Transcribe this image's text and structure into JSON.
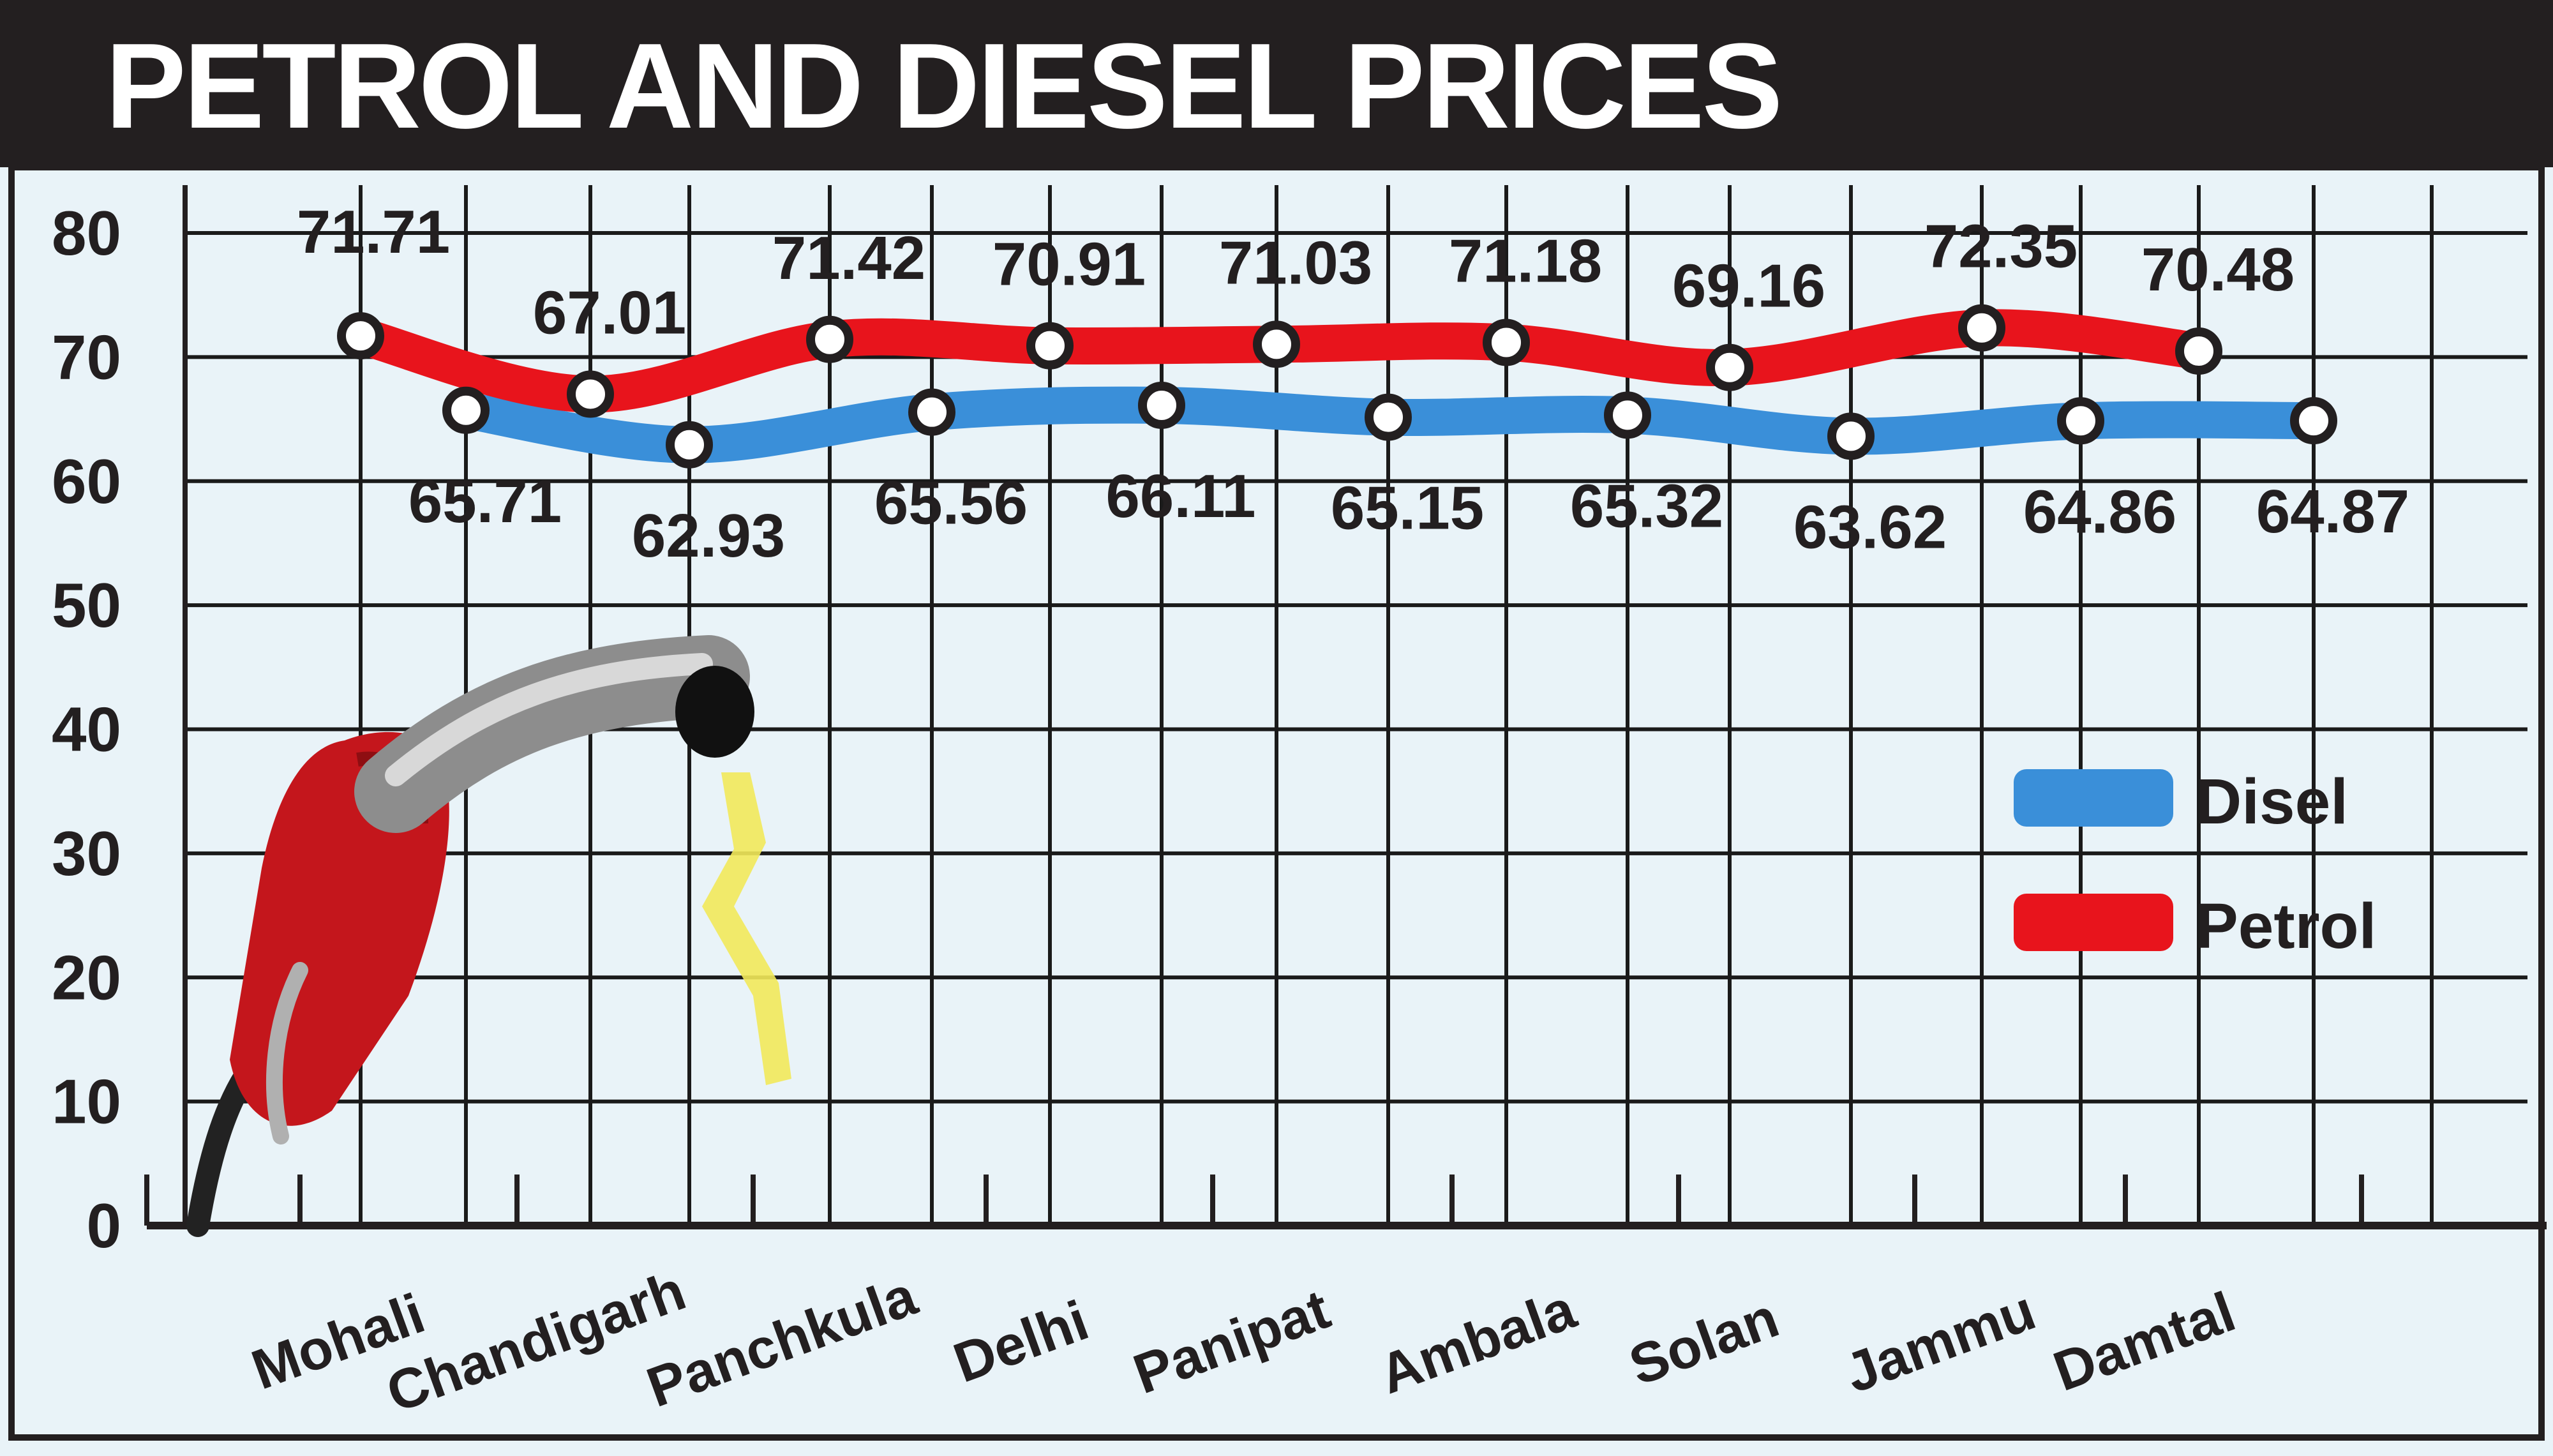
{
  "colors": {
    "diesel": "#3a8fd9",
    "petrol": "#e8141c",
    "grid": "#1a1a1a",
    "background": "#e9f3f8",
    "title_bar": "#231f20"
  },
  "chart_data": {
    "type": "line",
    "title": "PETROL AND DIESEL PRICES",
    "xlabel": "",
    "ylabel": "",
    "ylim": [
      0,
      80
    ],
    "yticks": [
      0,
      10,
      20,
      30,
      40,
      50,
      60,
      70,
      80
    ],
    "grid": true,
    "legend_position": "right",
    "categories": [
      "Mohali",
      "Chandigarh",
      "Panchkula",
      "Delhi",
      "Panipat",
      "Ambala",
      "Solan",
      "Jammu",
      "Damtal"
    ],
    "series": [
      {
        "name": "Disel",
        "values": [
          65.71,
          62.93,
          65.56,
          66.11,
          65.15,
          65.32,
          63.62,
          64.86,
          64.87
        ],
        "labels": [
          "65.71",
          "62.93",
          "65.56",
          "66.11",
          "65.15",
          "65.32",
          "63.62",
          "64.86",
          "64.87"
        ]
      },
      {
        "name": "Petrol",
        "values": [
          71.71,
          67.01,
          71.42,
          70.91,
          71.03,
          71.18,
          69.16,
          72.35,
          70.48
        ],
        "labels": [
          "71.71",
          "67.01",
          "71.42",
          "70.91",
          "71.03",
          "71.18",
          "69.16",
          "72.35",
          "70.48"
        ]
      }
    ]
  }
}
